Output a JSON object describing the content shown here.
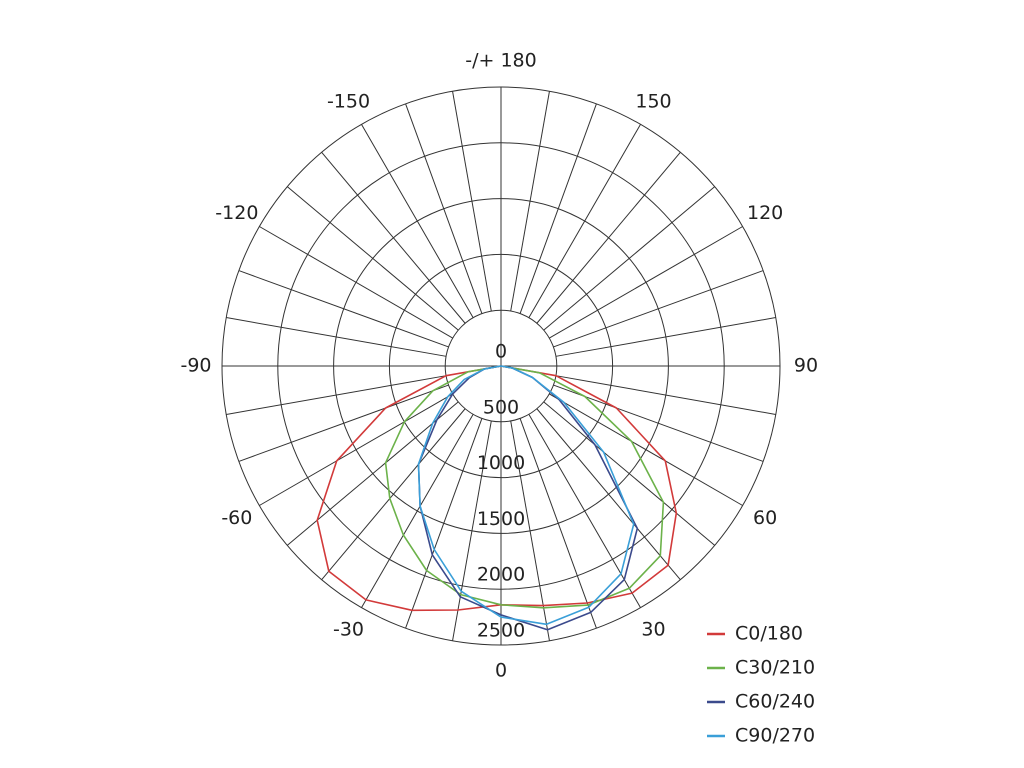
{
  "chart_data": {
    "type": "polar",
    "theta": [
      -90,
      -80,
      -70,
      -60,
      -50,
      -40,
      -30,
      -20,
      -10,
      0,
      10,
      20,
      30,
      40,
      50,
      60,
      70,
      80,
      90
    ],
    "series": [
      {
        "name": "C0/180",
        "color": "#d23a3a",
        "values": [
          0,
          500,
          1100,
          1700,
          2150,
          2400,
          2420,
          2330,
          2220,
          2140,
          2180,
          2260,
          2350,
          2330,
          2050,
          1700,
          1100,
          500,
          0
        ]
      },
      {
        "name": "C30/210",
        "color": "#6cb24a",
        "values": [
          0,
          300,
          650,
          1000,
          1350,
          1550,
          1750,
          1950,
          2080,
          2140,
          2200,
          2280,
          2300,
          2220,
          1900,
          1350,
          800,
          350,
          0
        ]
      },
      {
        "name": "C60/240",
        "color": "#3b4a8c",
        "values": [
          0,
          150,
          300,
          500,
          750,
          1150,
          1450,
          1800,
          2100,
          2230,
          2400,
          2350,
          2210,
          1900,
          1100,
          600,
          300,
          100,
          0
        ]
      },
      {
        "name": "C90/270",
        "color": "#3a9fd8",
        "values": [
          0,
          150,
          350,
          550,
          800,
          1150,
          1450,
          1750,
          2050,
          2250,
          2350,
          2300,
          2150,
          1850,
          1200,
          650,
          300,
          100,
          0
        ]
      }
    ],
    "rlim": [
      0,
      2500
    ],
    "rticks": [
      0,
      500,
      1000,
      1500,
      2000,
      2500
    ],
    "thetaticks": [
      -150,
      -120,
      -90,
      -60,
      -30,
      0,
      30,
      60,
      90,
      120,
      150,
      {
        "value": 180,
        "label": "-/+ 180"
      }
    ],
    "theta_grid_step": 10,
    "grid": true,
    "legend": "lower right"
  }
}
